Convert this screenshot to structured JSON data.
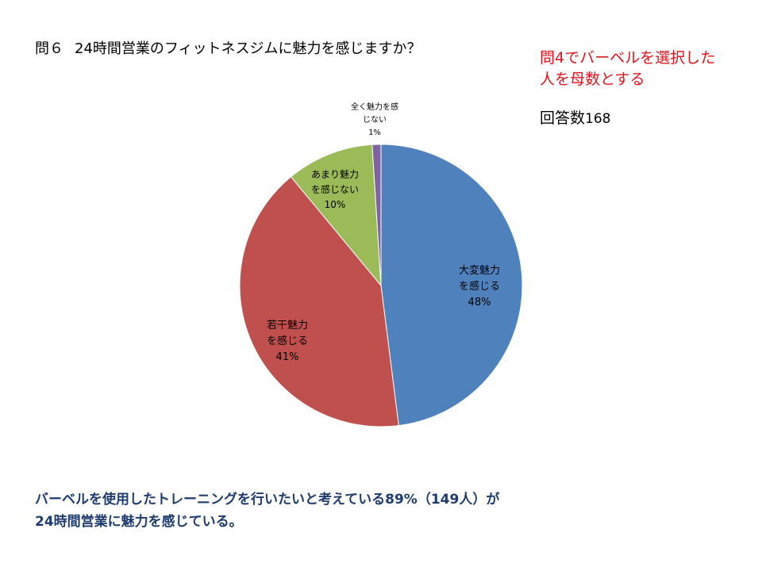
{
  "header": {
    "question_number": "問６",
    "question_text": "24時間営業のフィットネスジムに魅力を感じますか？"
  },
  "note": {
    "line1": "問4でバーベルを選択した",
    "line2": "人を母数とする"
  },
  "responses": {
    "label": "回答数",
    "value": "168"
  },
  "chart_data": {
    "type": "pie",
    "start_angle_deg": 0,
    "direction": "clockwise",
    "slices": [
      {
        "label_line1": "大変魅力",
        "label_line2": "を感じる",
        "value": 48,
        "value_label": "48%",
        "color": "#4f81bd"
      },
      {
        "label_line1": "若干魅力",
        "label_line2": "を感じる",
        "value": 41,
        "value_label": "41%",
        "color": "#c0504d"
      },
      {
        "label_line1": "あまり魅力",
        "label_line2": "を感じない",
        "value": 10,
        "value_label": "10%",
        "color": "#9bbb59"
      },
      {
        "label_line1": "全く魅力を感",
        "label_line2": "じない",
        "value": 1,
        "value_label": "1%",
        "color": "#8064a2"
      }
    ]
  },
  "conclusion": {
    "line1": "バーベルを使用したトレーニングを行いたいと考えている89%（149人）が",
    "line2": "24時間営業に魅力を感じている。"
  }
}
